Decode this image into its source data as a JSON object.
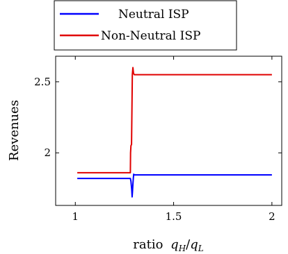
{
  "chart_data": {
    "type": "line",
    "title": "",
    "xlabel_prefix": "ratio",
    "xlabel_math": "q_H/q_L",
    "ylabel": "Revenues",
    "xlim": [
      0.9,
      2.05
    ],
    "ylim": [
      1.63,
      2.68
    ],
    "xticks": [
      1,
      1.5,
      2
    ],
    "xtick_labels": [
      "1",
      "1.5",
      "2"
    ],
    "yticks": [
      2,
      2.5
    ],
    "ytick_labels": [
      "2",
      "2.5"
    ],
    "grid": false,
    "legend_position": "top-left-outside",
    "series": [
      {
        "name": "Neutral ISP",
        "color": "#0000ff",
        "x": [
          1.01,
          1.05,
          1.1,
          1.15,
          1.2,
          1.25,
          1.27,
          1.28,
          1.283,
          1.285,
          1.287,
          1.289,
          1.291,
          1.293,
          1.295,
          1.297,
          1.3,
          1.32,
          1.4,
          1.6,
          1.8,
          2.0
        ],
        "y": [
          1.82,
          1.82,
          1.82,
          1.82,
          1.82,
          1.82,
          1.82,
          1.82,
          1.8,
          1.77,
          1.74,
          1.69,
          1.73,
          1.78,
          1.82,
          1.85,
          1.845,
          1.845,
          1.845,
          1.845,
          1.845,
          1.845
        ]
      },
      {
        "name": "Non-Neutral ISP",
        "color": "#e00000",
        "x": [
          1.01,
          1.1,
          1.2,
          1.27,
          1.28,
          1.281,
          1.283,
          1.286,
          1.288,
          1.29,
          1.293,
          1.296,
          1.3,
          1.35,
          1.5,
          1.7,
          1.9,
          2.0
        ],
        "y": [
          1.86,
          1.86,
          1.86,
          1.86,
          1.86,
          2.0,
          2.05,
          2.06,
          2.3,
          2.55,
          2.6,
          2.56,
          2.55,
          2.55,
          2.55,
          2.55,
          2.55,
          2.55
        ]
      }
    ]
  }
}
